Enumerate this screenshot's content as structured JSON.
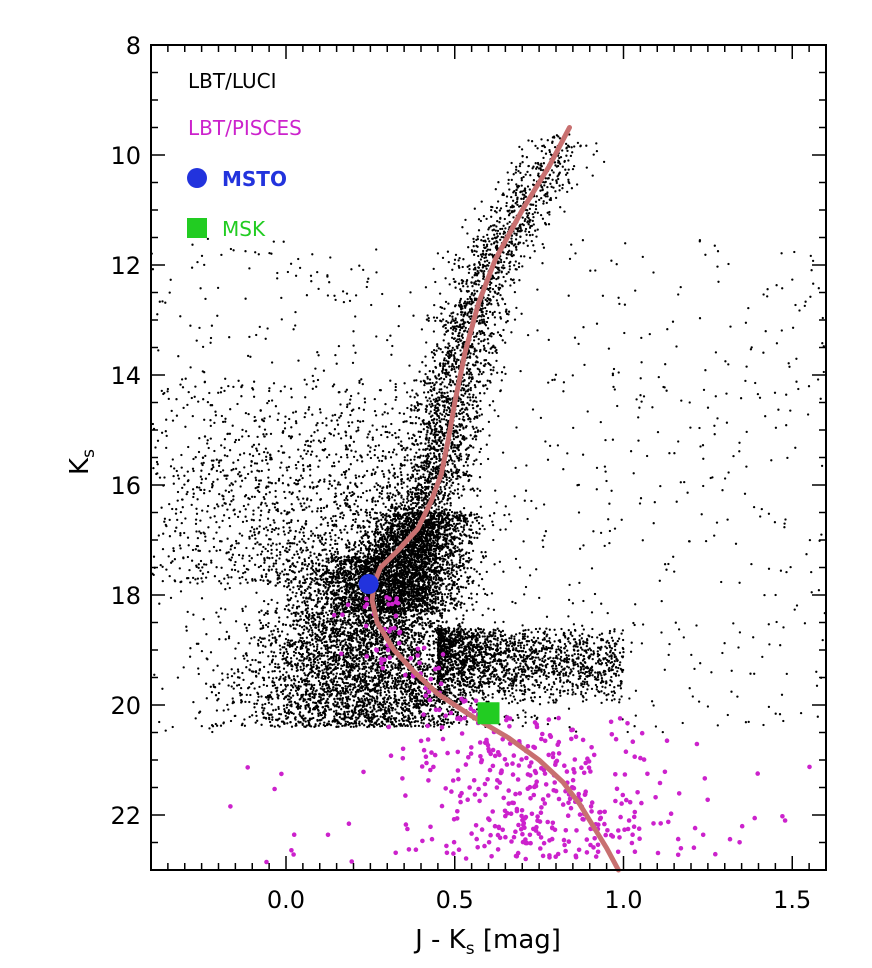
{
  "chart_data": {
    "type": "scatter",
    "title": "",
    "xlabel_main": "J - K",
    "xlabel_sub": "s",
    "xlabel_unit": " [mag]",
    "ylabel_main": "K",
    "ylabel_sub": "s",
    "xlim": [
      -0.4,
      1.6
    ],
    "ylim": [
      23.0,
      8.0
    ],
    "y_inverted": true,
    "x_ticks": [
      {
        "value": 0.0,
        "label": "0.0"
      },
      {
        "value": 0.5,
        "label": "0.5"
      },
      {
        "value": 1.0,
        "label": "1.0"
      },
      {
        "value": 1.5,
        "label": "1.5"
      }
    ],
    "y_ticks": [
      {
        "value": 8,
        "label": "8"
      },
      {
        "value": 10,
        "label": "10"
      },
      {
        "value": 12,
        "label": "12"
      },
      {
        "value": 14,
        "label": "14"
      },
      {
        "value": 16,
        "label": "16"
      },
      {
        "value": 18,
        "label": "18"
      },
      {
        "value": 20,
        "label": "20"
      },
      {
        "value": 22,
        "label": "22"
      }
    ],
    "legend_placement": "top-left",
    "legend": [
      {
        "key": "luci",
        "label": "LBT/LUCI",
        "color": "#000000",
        "marker": "none"
      },
      {
        "key": "pisces",
        "label": "LBT/PISCES",
        "color": "#cc22cc",
        "marker": "none"
      },
      {
        "key": "msto",
        "label": "MSTO",
        "color": "#2233dd",
        "marker": "circle"
      },
      {
        "key": "msk",
        "label": "MSK",
        "color": "#22cc22",
        "marker": "square"
      }
    ],
    "series": [
      {
        "name": "LBT/LUCI",
        "kind": "scatter",
        "color": "#000000",
        "components": [
          {
            "type": "ms_band",
            "count": 5200,
            "x_center": 0.25,
            "x_spread": 0.13,
            "y_min": 17.3,
            "y_max": 20.4
          },
          {
            "type": "sgb_blob",
            "count": 2200,
            "x_center": 0.38,
            "x_spread": 0.08,
            "y_min": 16.5,
            "y_max": 18.3
          },
          {
            "type": "red_tail",
            "count": 1700,
            "x_from": 0.45,
            "x_to": 1.0,
            "y_min": 18.6,
            "y_max": 20.0
          },
          {
            "type": "rgb_ridge",
            "count": 2600,
            "x_offset_spread": 0.05,
            "y_min": 9.6,
            "y_max": 17.4
          },
          {
            "type": "broad_wing",
            "count": 1600,
            "x_from": -0.4,
            "x_to": 0.45,
            "y_min": 14.0,
            "y_max": 17.8
          },
          {
            "type": "field",
            "count": 900,
            "x_from": -0.4,
            "x_to": 1.6,
            "y_min": 11.5,
            "y_max": 20.5
          }
        ]
      },
      {
        "name": "LBT/PISCES",
        "kind": "scatter",
        "color": "#cc22cc",
        "components": [
          {
            "type": "lower_cloud",
            "count": 360,
            "x_center": 0.72,
            "x_spread": 0.19,
            "y_min": 20.2,
            "y_max": 22.8
          },
          {
            "type": "upper_ms",
            "count": 70,
            "x_center": 0.33,
            "x_spread": 0.06,
            "y_min": 18.0,
            "y_max": 20.3
          },
          {
            "type": "scattered",
            "count": 40,
            "x_from": -0.25,
            "x_to": 1.6,
            "y_min": 21.0,
            "y_max": 23.0
          }
        ]
      },
      {
        "name": "isochrone",
        "kind": "line",
        "color": "#c87070",
        "points": [
          {
            "x": 0.84,
            "y": 9.5
          },
          {
            "x": 0.78,
            "y": 10.2
          },
          {
            "x": 0.7,
            "y": 11.0
          },
          {
            "x": 0.62,
            "y": 11.9
          },
          {
            "x": 0.57,
            "y": 12.7
          },
          {
            "x": 0.53,
            "y": 13.6
          },
          {
            "x": 0.5,
            "y": 14.5
          },
          {
            "x": 0.48,
            "y": 15.2
          },
          {
            "x": 0.46,
            "y": 15.8
          },
          {
            "x": 0.43,
            "y": 16.3
          },
          {
            "x": 0.39,
            "y": 16.8
          },
          {
            "x": 0.33,
            "y": 17.2
          },
          {
            "x": 0.28,
            "y": 17.5
          },
          {
            "x": 0.26,
            "y": 17.8
          },
          {
            "x": 0.255,
            "y": 18.1
          },
          {
            "x": 0.27,
            "y": 18.5
          },
          {
            "x": 0.32,
            "y": 19.0
          },
          {
            "x": 0.38,
            "y": 19.4
          },
          {
            "x": 0.45,
            "y": 19.8
          },
          {
            "x": 0.55,
            "y": 20.2
          },
          {
            "x": 0.66,
            "y": 20.6
          },
          {
            "x": 0.75,
            "y": 21.0
          },
          {
            "x": 0.82,
            "y": 21.4
          },
          {
            "x": 0.87,
            "y": 21.8
          },
          {
            "x": 0.91,
            "y": 22.2
          },
          {
            "x": 0.95,
            "y": 22.6
          },
          {
            "x": 0.985,
            "y": 23.0
          }
        ]
      }
    ],
    "markers": [
      {
        "key": "msto",
        "label": "MSTO",
        "x": 0.245,
        "y": 17.8,
        "color": "#2233dd",
        "marker": "circle"
      },
      {
        "key": "msk",
        "label": "MSK",
        "x": 0.6,
        "y": 20.15,
        "color": "#22cc22",
        "marker": "square"
      }
    ],
    "grid": false
  }
}
